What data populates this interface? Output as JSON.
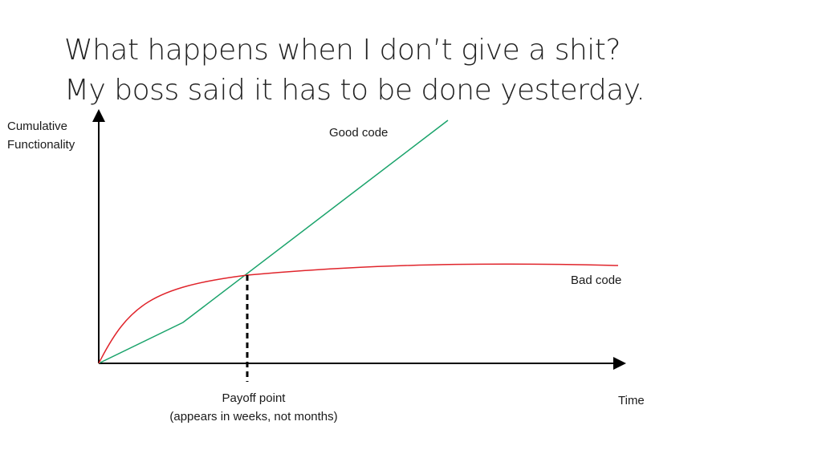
{
  "title": {
    "line1": "What happens when I don’t give a shit?",
    "line2": "My boss said it has to be done yesterday."
  },
  "axes": {
    "y_label_line1": "Cumulative",
    "y_label_line2": "Functionality",
    "x_label": "Time"
  },
  "curves": {
    "good": {
      "label": "Good code",
      "color": "#1aa36b"
    },
    "bad": {
      "label": "Bad code",
      "color": "#e0242b"
    }
  },
  "payoff": {
    "line1": "Payoff point",
    "line2": "(appears in weeks, not months)"
  }
}
